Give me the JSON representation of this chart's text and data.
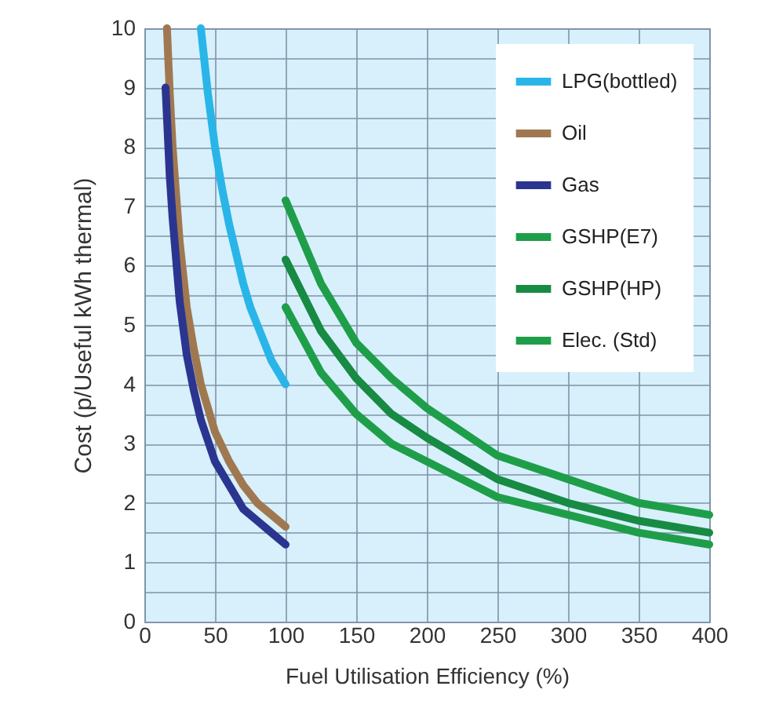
{
  "chart_data": {
    "type": "line",
    "xlabel": "Fuel Utilisation Efficiency (%)",
    "ylabel": "Cost  (p/Useful kWh thermal)",
    "xlim": [
      0,
      400
    ],
    "xticks": [
      0,
      50,
      100,
      150,
      200,
      250,
      300,
      350,
      400
    ],
    "ylim": [
      0,
      10
    ],
    "yticks": [
      0,
      {
        "value": 0.5,
        "label": null
      },
      1,
      {
        "value": 1.5,
        "label": null
      },
      2,
      {
        "value": 2.5,
        "label": null
      },
      3,
      {
        "value": 3.5,
        "label": null
      },
      4,
      {
        "value": 4.5,
        "label": null
      },
      5,
      {
        "value": 5.5,
        "label": null
      },
      6,
      {
        "value": 6.5,
        "label": null
      },
      7,
      {
        "value": 7.5,
        "label": null
      },
      8,
      {
        "value": 8.5,
        "label": null
      },
      9,
      {
        "value": 9.5,
        "label": null
      },
      10
    ],
    "grid": true,
    "legend": "top right",
    "marker": "none",
    "line_style": "solid",
    "series": [
      {
        "name": "LPG(bottled)",
        "color": "#29b5e8",
        "x": [
          40,
          45,
          50,
          55,
          60,
          65,
          70,
          75,
          80,
          85,
          90,
          95,
          100
        ],
        "values": [
          10,
          8.9,
          8,
          7.3,
          6.7,
          6.2,
          5.7,
          5.3,
          5,
          4.7,
          4.4,
          4.2,
          4
        ]
      },
      {
        "name": "Oil",
        "color": "#a07850",
        "x": [
          16,
          18,
          20,
          25,
          30,
          35,
          40,
          50,
          60,
          70,
          80,
          90,
          100
        ],
        "values": [
          10,
          8.9,
          8,
          6.4,
          5.3,
          4.6,
          4,
          3.2,
          2.7,
          2.3,
          2,
          1.8,
          1.6
        ]
      },
      {
        "name": "Gas",
        "color": "#2b3590",
        "x": [
          15,
          18,
          20,
          25,
          30,
          35,
          40,
          50,
          60,
          70,
          80,
          90,
          100
        ],
        "values": [
          9,
          7.5,
          6.8,
          5.4,
          4.5,
          3.9,
          3.4,
          2.7,
          2.3,
          1.9,
          1.7,
          1.5,
          1.3
        ]
      },
      {
        "name": "GSHP(E7)",
        "color": "#1f9e4a",
        "x": [
          100,
          125,
          150,
          175,
          200,
          250,
          300,
          350,
          400
        ],
        "values": [
          7.1,
          5.7,
          4.7,
          4.1,
          3.6,
          2.8,
          2.4,
          2,
          1.8
        ]
      },
      {
        "name": "GSHP(HP)",
        "color": "#178a43",
        "x": [
          100,
          125,
          150,
          175,
          200,
          250,
          300,
          350,
          400
        ],
        "values": [
          6.1,
          4.9,
          4.1,
          3.5,
          3.1,
          2.4,
          2,
          1.7,
          1.5
        ]
      },
      {
        "name": "Elec. (Std)",
        "color": "#1f9e4a",
        "x": [
          100,
          125,
          150,
          175,
          200,
          250,
          300,
          350,
          400
        ],
        "values": [
          5.3,
          4.2,
          3.5,
          3,
          2.7,
          2.1,
          1.8,
          1.5,
          1.3
        ]
      }
    ]
  }
}
